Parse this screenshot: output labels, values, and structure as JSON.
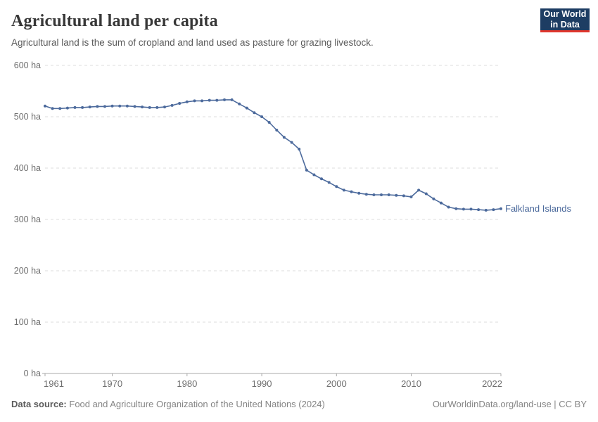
{
  "header": {
    "title": "Agricultural land per capita",
    "subtitle": "Agricultural land is the sum of cropland and land used as pasture for grazing livestock.",
    "logo": {
      "line1": "Our World",
      "line2": "in Data",
      "bg_color": "#1d3d63",
      "accent_color": "#e0362c",
      "text_color": "#ffffff"
    }
  },
  "chart_data": {
    "type": "line",
    "title": "Agricultural land per capita",
    "unit": "ha",
    "xlabel": "",
    "ylabel": "",
    "xlim": [
      1961,
      2022
    ],
    "ylim": [
      0,
      600
    ],
    "grid": "horizontal-dashed",
    "legend_position": "end-of-line-label",
    "x_ticks": [
      1961,
      1970,
      1980,
      1990,
      2000,
      2010,
      2022
    ],
    "y_ticks": [
      {
        "value": 0,
        "label": "0 ha"
      },
      {
        "value": 100,
        "label": "100 ha"
      },
      {
        "value": 200,
        "label": "200 ha"
      },
      {
        "value": 300,
        "label": "300 ha"
      },
      {
        "value": 400,
        "label": "400 ha"
      },
      {
        "value": 500,
        "label": "500 ha"
      },
      {
        "value": 600,
        "label": "600 ha"
      }
    ],
    "series": [
      {
        "name": "Falkland Islands",
        "color": "#4C6A9C",
        "x": [
          1961,
          1962,
          1963,
          1964,
          1965,
          1966,
          1967,
          1968,
          1969,
          1970,
          1971,
          1972,
          1973,
          1974,
          1975,
          1976,
          1977,
          1978,
          1979,
          1980,
          1981,
          1982,
          1983,
          1984,
          1985,
          1986,
          1987,
          1988,
          1989,
          1990,
          1991,
          1992,
          1993,
          1994,
          1995,
          1996,
          1997,
          1998,
          1999,
          2000,
          2001,
          2002,
          2003,
          2004,
          2005,
          2006,
          2007,
          2008,
          2009,
          2010,
          2011,
          2012,
          2013,
          2014,
          2015,
          2016,
          2017,
          2018,
          2019,
          2020,
          2021,
          2022
        ],
        "values": [
          521,
          516,
          516,
          517,
          518,
          518,
          519,
          520,
          520,
          521,
          521,
          521,
          520,
          519,
          518,
          518,
          519,
          522,
          526,
          529,
          531,
          531,
          532,
          532,
          533,
          533,
          525,
          517,
          508,
          500,
          489,
          474,
          460,
          450,
          437,
          396,
          387,
          379,
          372,
          364,
          357,
          354,
          351,
          349,
          348,
          348,
          348,
          347,
          346,
          344,
          357,
          350,
          340,
          332,
          324,
          321,
          320,
          320,
          319,
          318,
          319,
          321
        ]
      }
    ]
  },
  "colors": {
    "gridline": "#dcdcdc",
    "axis": "#a8a8a8",
    "tick_label": "#6e6e6e"
  },
  "footer": {
    "datasource_label": "Data source:",
    "datasource_text": "Food and Agriculture Organization of the United Nations (2024)",
    "link_text": "OurWorldinData.org/land-use | CC BY"
  }
}
